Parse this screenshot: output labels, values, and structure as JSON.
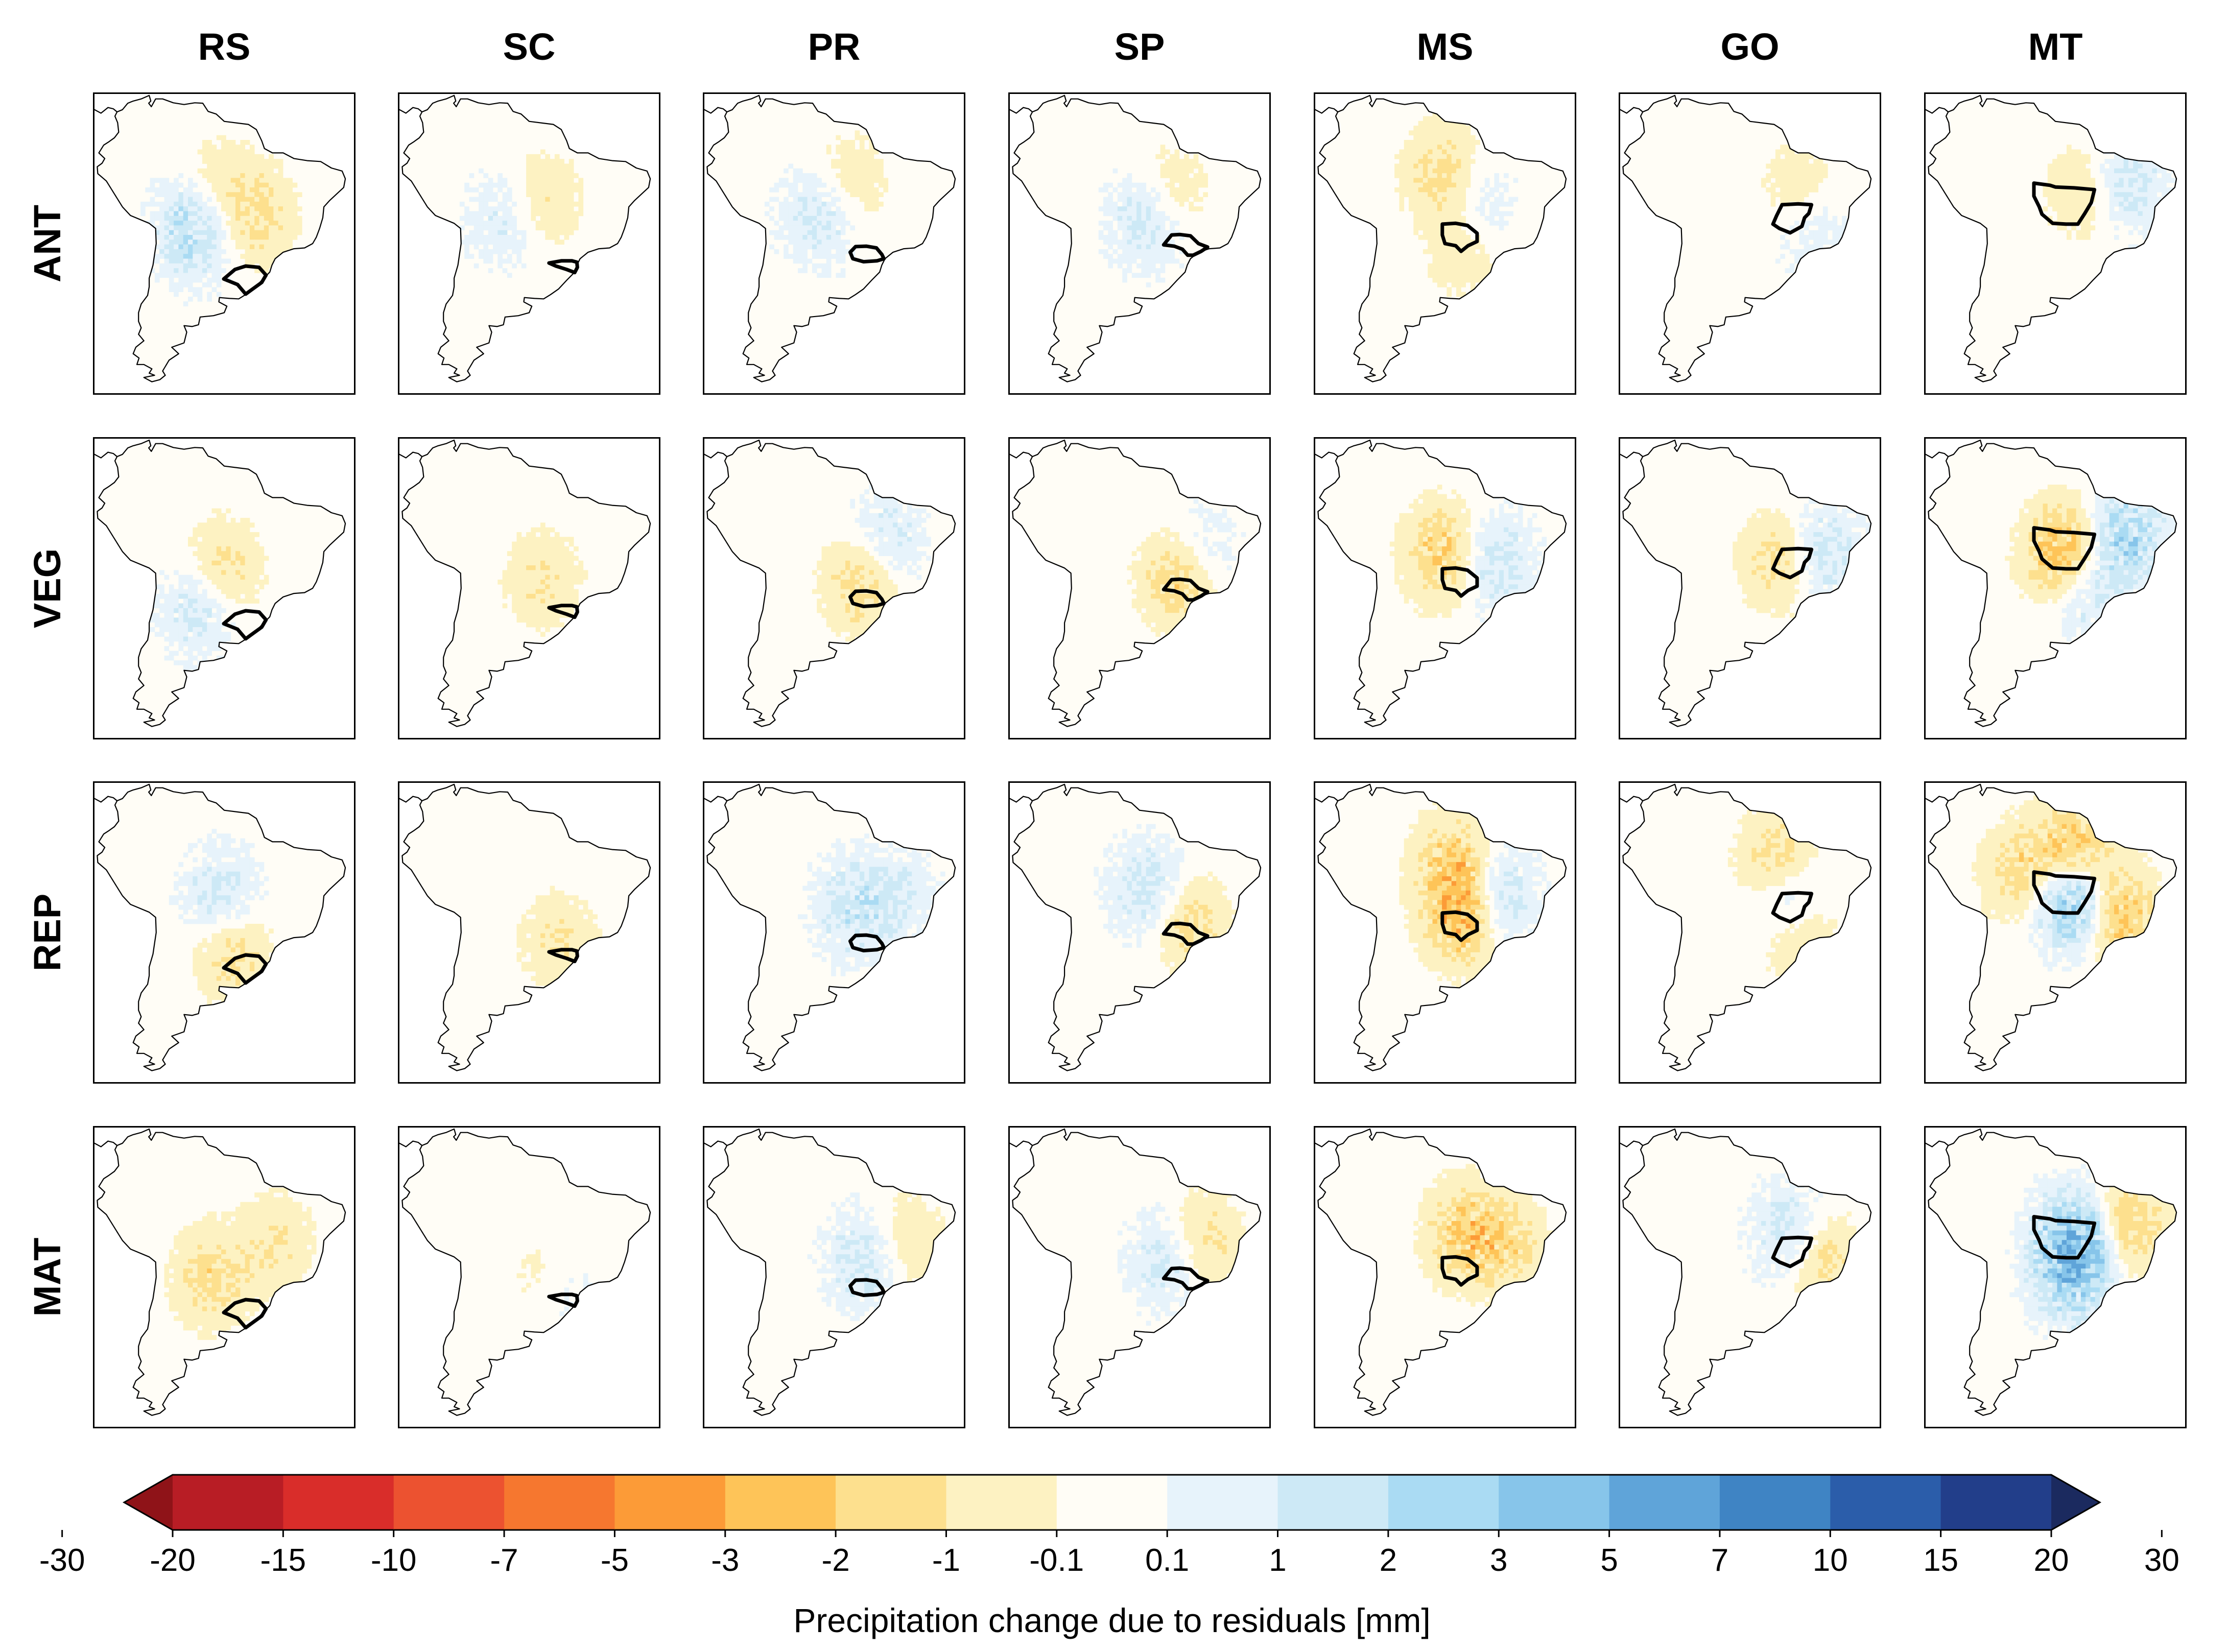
{
  "chart_data": {
    "type": "heatmap",
    "panel_kind": "map-grid",
    "columns": [
      "RS",
      "SC",
      "PR",
      "SP",
      "MS",
      "GO",
      "MT"
    ],
    "rows": [
      "ANT",
      "VEG",
      "REP",
      "MAT"
    ],
    "panels": [
      [
        {
          "hotspots": [
            {
              "lon": -63,
              "lat": -18,
              "v": 2.5
            },
            {
              "lon": -52,
              "lat": -15,
              "v": -1.5
            },
            {
              "lon": -60,
              "lat": -10,
              "v": -1
            }
          ]
        },
        {
          "hotspots": [
            {
              "lon": -55,
              "lat": -12,
              "v": -1
            },
            {
              "lon": -62,
              "lat": -16,
              "v": 1
            }
          ]
        },
        {
          "hotspots": [
            {
              "lon": -55,
              "lat": -8,
              "v": -1
            },
            {
              "lon": -60,
              "lat": -15,
              "v": 1.5
            }
          ]
        },
        {
          "hotspots": [
            {
              "lon": -52,
              "lat": -10,
              "v": -1
            },
            {
              "lon": -56,
              "lat": -16,
              "v": 1.5
            }
          ]
        },
        {
          "hotspots": [
            {
              "lon": -58,
              "lat": -6,
              "v": -1.5
            },
            {
              "lon": -52,
              "lat": -14,
              "v": 1
            },
            {
              "lon": -54,
              "lat": -22,
              "v": -1
            }
          ]
        },
        {
          "hotspots": [
            {
              "lon": -48,
              "lat": -10,
              "v": -1
            },
            {
              "lon": -46,
              "lat": -18,
              "v": 1
            }
          ]
        },
        {
          "hotspots": [
            {
              "lon": -52,
              "lat": -10,
              "v": -1
            },
            {
              "lon": -44,
              "lat": -8,
              "v": 1.5
            }
          ]
        }
      ],
      [
        {
          "hotspots": [
            {
              "lon": -58,
              "lat": -18,
              "v": -1.5
            },
            {
              "lon": -62,
              "lat": -26,
              "v": 1.5
            }
          ]
        },
        {
          "hotspots": [
            {
              "lon": -55,
              "lat": -20,
              "v": -1
            }
          ]
        },
        {
          "hotspots": [
            {
              "lon": -52,
              "lat": -20,
              "v": -2
            },
            {
              "lon": -48,
              "lat": -12,
              "v": 1.5
            }
          ]
        },
        {
          "hotspots": [
            {
              "lon": -50,
              "lat": -20,
              "v": -2
            },
            {
              "lon": -46,
              "lat": -14,
              "v": 1
            }
          ]
        },
        {
          "hotspots": [
            {
              "lon": -58,
              "lat": -14,
              "v": -2
            },
            {
              "lon": -48,
              "lat": -16,
              "v": 1.5
            }
          ]
        },
        {
          "hotspots": [
            {
              "lon": -52,
              "lat": -16,
              "v": -1.5
            },
            {
              "lon": -44,
              "lat": -14,
              "v": 1.5
            }
          ]
        },
        {
          "hotspots": [
            {
              "lon": -56,
              "lat": -14,
              "v": -3
            },
            {
              "lon": -44,
              "lat": -10,
              "v": 2.5
            },
            {
              "lon": -52,
              "lat": -22,
              "v": 1.5
            }
          ]
        }
      ],
      [
        {
          "hotspots": [
            {
              "lon": -58,
              "lat": -14,
              "v": 1.5
            },
            {
              "lon": -56,
              "lat": -26,
              "v": -1.5
            }
          ]
        },
        {
          "hotspots": [
            {
              "lon": -52,
              "lat": -24,
              "v": -1
            }
          ]
        },
        {
          "hotspots": [
            {
              "lon": -54,
              "lat": -16,
              "v": 1.5
            },
            {
              "lon": -46,
              "lat": -14,
              "v": 1
            }
          ]
        },
        {
          "hotspots": [
            {
              "lon": -56,
              "lat": -12,
              "v": 1.5
            },
            {
              "lon": -48,
              "lat": -20,
              "v": -1.5
            }
          ]
        },
        {
          "hotspots": [
            {
              "lon": -56,
              "lat": -6,
              "v": -2
            },
            {
              "lon": -54,
              "lat": -18,
              "v": -3
            },
            {
              "lon": -48,
              "lat": -14,
              "v": 2
            }
          ]
        },
        {
          "hotspots": [
            {
              "lon": -52,
              "lat": -6,
              "v": -2
            },
            {
              "lon": -50,
              "lat": -14,
              "v": 2
            },
            {
              "lon": -48,
              "lat": -22,
              "v": -1.5
            }
          ]
        },
        {
          "hotspots": [
            {
              "lon": -54,
              "lat": -4,
              "v": -3
            },
            {
              "lon": -54,
              "lat": -14,
              "v": 4
            },
            {
              "lon": -46,
              "lat": -18,
              "v": -2.5
            },
            {
              "lon": -64,
              "lat": -8,
              "v": -1.5
            }
          ]
        }
      ],
      [
        {
          "hotspots": [
            {
              "lon": -60,
              "lat": -22,
              "v": -1.5
            },
            {
              "lon": -48,
              "lat": -14,
              "v": -1
            }
          ]
        },
        {
          "hotspots": [
            {
              "lon": -52,
              "lat": -26,
              "v": 1
            },
            {
              "lon": -54,
              "lat": -24,
              "v": -1
            }
          ]
        },
        {
          "hotspots": [
            {
              "lon": -52,
              "lat": -18,
              "v": 1.5
            },
            {
              "lon": -44,
              "lat": -14,
              "v": -1
            }
          ]
        },
        {
          "hotspots": [
            {
              "lon": -52,
              "lat": -18,
              "v": 1.5
            },
            {
              "lon": -46,
              "lat": -14,
              "v": -1.5
            }
          ]
        },
        {
          "hotspots": [
            {
              "lon": -54,
              "lat": -12,
              "v": -2
            },
            {
              "lon": -46,
              "lat": -14,
              "v": -1.5
            }
          ]
        },
        {
          "hotspots": [
            {
              "lon": -50,
              "lat": -12,
              "v": 1.5
            },
            {
              "lon": -44,
              "lat": -18,
              "v": -1.5
            }
          ]
        },
        {
          "hotspots": [
            {
              "lon": -54,
              "lat": -14,
              "v": 4
            },
            {
              "lon": -44,
              "lat": -10,
              "v": -2
            },
            {
              "lon": -54,
              "lat": -22,
              "v": 2
            }
          ]
        }
      ]
    ],
    "colorbar": {
      "boundaries": [
        "-30",
        "-20",
        "-15",
        "-10",
        "-7",
        "-5",
        "-3",
        "-2",
        "-1",
        "-0.1",
        "0.1",
        "1",
        "2",
        "3",
        "5",
        "7",
        "10",
        "15",
        "20",
        "30"
      ],
      "colors": [
        "#8f1318",
        "#b81d25",
        "#d92d2a",
        "#ec5230",
        "#f6772f",
        "#fc9b37",
        "#fec458",
        "#fde08e",
        "#fdf2c2",
        "#fffdf6",
        "#e7f3fb",
        "#cde9f6",
        "#aadbf3",
        "#87c5ea",
        "#5fa4d9",
        "#3f84c4",
        "#2b5daa",
        "#223e8a",
        "#1b2a5f"
      ],
      "extend": "both",
      "label": "Precipitation change due to residuals [mm]"
    },
    "land_color": "#fffdf6",
    "ocean_color": "#ffffff"
  }
}
